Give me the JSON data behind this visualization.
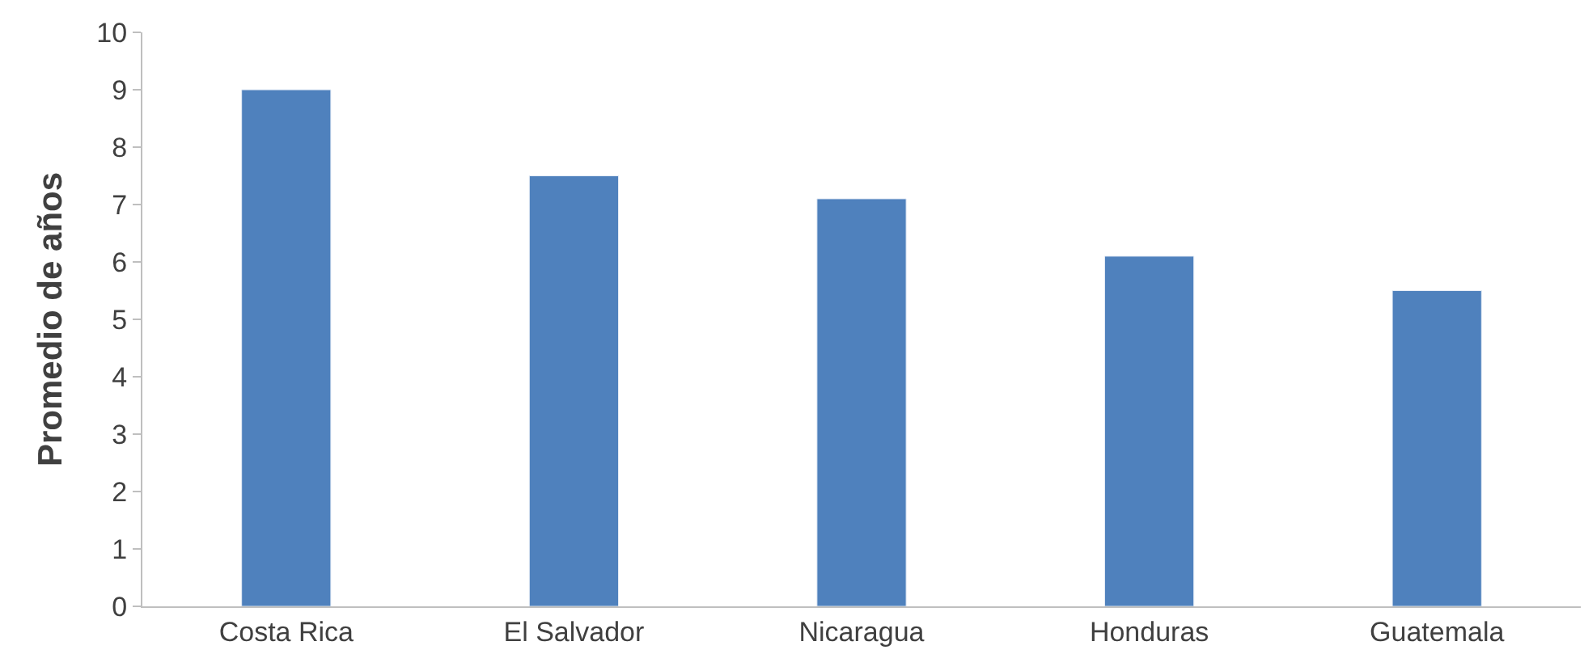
{
  "chart_data": {
    "type": "bar",
    "ylabel": "Promedio de años",
    "categories": [
      "Costa Rica",
      "El Salvador",
      "Nicaragua",
      "Honduras",
      "Guatemala"
    ],
    "values": [
      9.0,
      7.5,
      7.1,
      6.1,
      5.5
    ],
    "color": "#4f81bd",
    "ylim": [
      0,
      10
    ],
    "yticks": [
      0,
      1,
      2,
      3,
      4,
      5,
      6,
      7,
      8,
      9,
      10
    ],
    "grid": false
  }
}
